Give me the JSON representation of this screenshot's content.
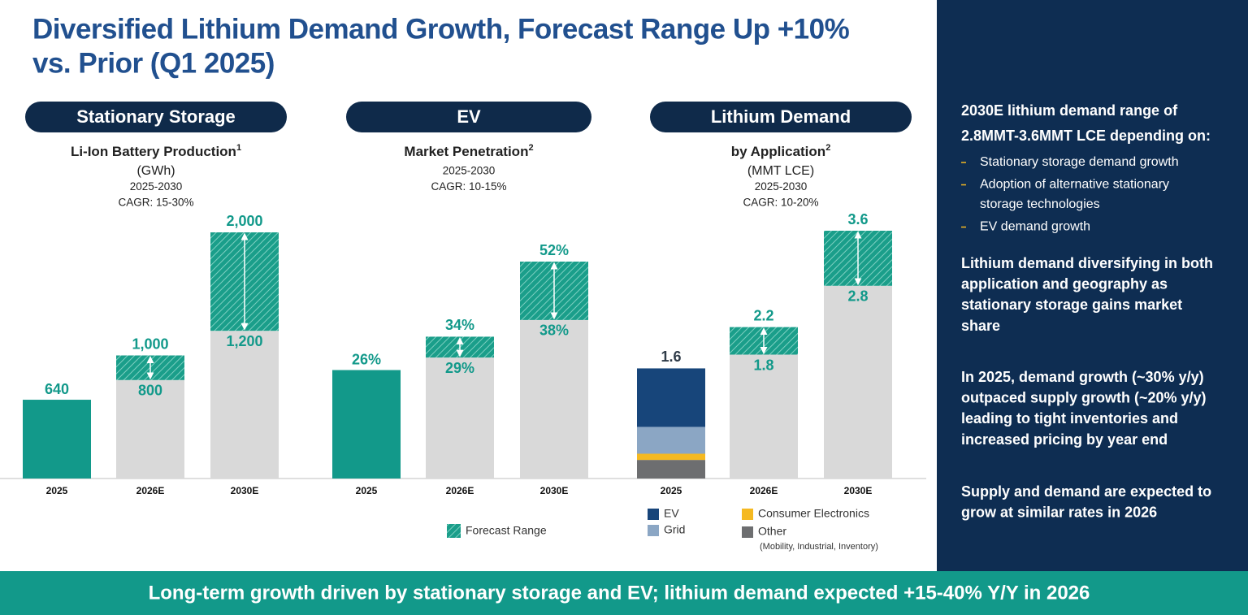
{
  "title": [
    "Diversified Lithium Demand Growth, Forecast Range Up +10%",
    "vs. Prior (Q1 2025)"
  ],
  "chart_data": [
    {
      "type": "bar",
      "header": "Stationary Storage",
      "title": "Li-Ion Battery Production",
      "title_note": "1",
      "subtitle": [
        "(GWh)",
        "2025-2030",
        "CAGR: 15-30%"
      ],
      "categories": [
        "2025",
        "2026E",
        "2030E"
      ],
      "values": [
        640,
        800,
        1200
      ],
      "value_labels": [
        "640",
        "800",
        "1,200"
      ],
      "high": [
        null,
        1000,
        2000
      ],
      "high_labels": [
        null,
        "1,000",
        "2,000"
      ],
      "actual_color": "#12998a",
      "base_color": "#d9d9d9",
      "range_color": "#1a9e8a"
    },
    {
      "type": "bar",
      "header": "EV",
      "title": "Market Penetration",
      "title_note": "2",
      "subtitle": [
        "2025-2030",
        "CAGR: 10-15%"
      ],
      "categories": [
        "2025",
        "2026E",
        "2030E"
      ],
      "values": [
        26,
        29,
        38
      ],
      "value_labels": [
        "26%",
        "29%",
        "38%"
      ],
      "high": [
        null,
        34,
        52
      ],
      "high_labels": [
        null,
        "34%",
        "52%"
      ],
      "actual_color": "#12998a",
      "base_color": "#d9d9d9",
      "range_color": "#1a9e8a"
    },
    {
      "type": "bar",
      "header": "Lithium Demand",
      "title": "by Application",
      "title_note": "2",
      "subtitle": [
        "(MMT LCE)",
        "2025-2030",
        "CAGR: 10-20%"
      ],
      "categories": [
        "2025",
        "2026E",
        "2030E"
      ],
      "values": [
        1.6,
        1.8,
        2.8
      ],
      "high": [
        null,
        2.2,
        3.6
      ],
      "series": [
        {
          "name": "EV",
          "color": "#17457a",
          "values": [
            0.85,
            null,
            null
          ]
        },
        {
          "name": "Grid",
          "color": "#8ba6c4",
          "values": [
            0.39,
            null,
            null
          ]
        },
        {
          "name": "Consumer Electronics",
          "color": "#f5b921",
          "values": [
            0.09,
            null,
            null
          ]
        },
        {
          "name": "Other",
          "color": "#6d6e70",
          "values": [
            0.27,
            null,
            null
          ]
        }
      ],
      "legend_note": "(Mobility, Industrial, Inventory)",
      "actual_color": "#12998a",
      "base_color": "#d9d9d9",
      "range_color": "#1a9e8a"
    }
  ],
  "forecast_legend": "Forecast Range",
  "sidebar": {
    "heading": [
      "2030E lithium demand range of",
      "2.8MMT-3.6MMT LCE depending on:"
    ],
    "bullets": [
      [
        "Stationary storage demand growth"
      ],
      [
        "Adoption of alternative stationary",
        "storage technologies"
      ],
      [
        "EV demand growth"
      ]
    ],
    "paragraphs": [
      [
        "Lithium demand diversifying in both",
        "application and geography as",
        "stationary storage gains market",
        "share"
      ],
      [
        "In 2025, demand growth (~30% y/y)",
        "outpaced supply growth (~20% y/y)",
        "leading to tight inventories and",
        "increased pricing by year end"
      ],
      [
        "Supply and demand are expected to",
        "grow at similar rates in 2026"
      ]
    ]
  },
  "footer": "Long-term growth driven by stationary storage and EV; lithium demand expected +15-40% Y/Y in 2026"
}
